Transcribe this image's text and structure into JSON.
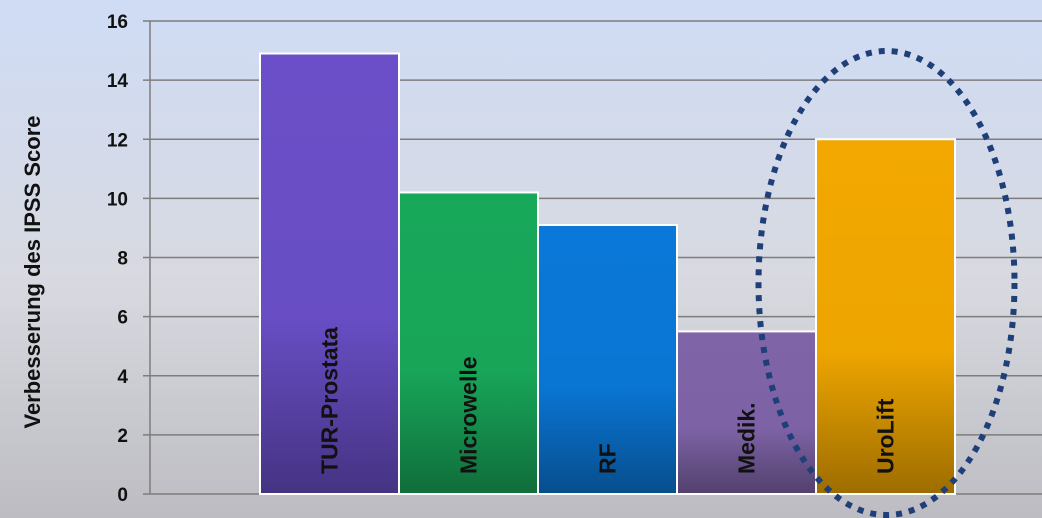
{
  "chart_data": {
    "type": "bar",
    "title": "",
    "xlabel": "",
    "ylabel": "Verbesserung des IPSS Score",
    "categories": [
      "TUR-Prostata",
      "Microwelle",
      "RF",
      "Medik.",
      "UroLift"
    ],
    "values": [
      14.9,
      10.2,
      9.1,
      5.5,
      12.0
    ],
    "colors": [
      "#6a4fc8",
      "#18a85a",
      "#0a78d8",
      "#7f64a8",
      "#f2a800"
    ],
    "ylim": [
      0,
      16
    ],
    "yticks": [
      0,
      2,
      4,
      6,
      8,
      10,
      12,
      14,
      16
    ],
    "grid": true,
    "legend": "none",
    "highlight": "UroLift"
  }
}
